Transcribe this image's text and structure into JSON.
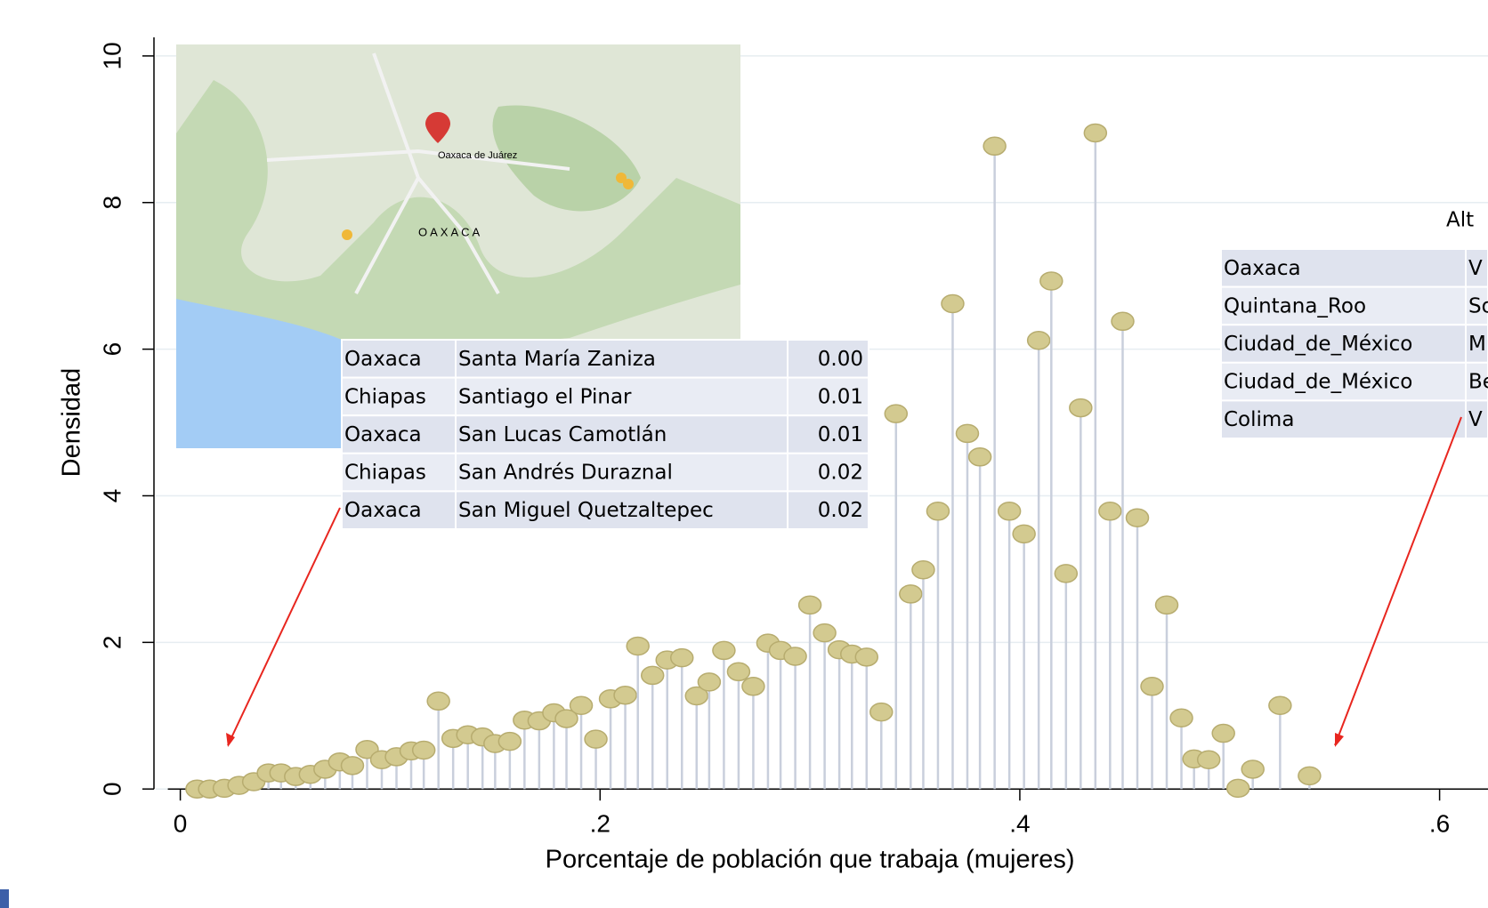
{
  "chart_data": {
    "type": "dropline",
    "xlabel": "Porcentaje de población que trabaja (mujeres)",
    "ylabel": "Densidad",
    "x": [
      0.008,
      0.014,
      0.021,
      0.028,
      0.035,
      0.042,
      0.048,
      0.055,
      0.062,
      0.069,
      0.076,
      0.082,
      0.089,
      0.096,
      0.103,
      0.11,
      0.116,
      0.123,
      0.13,
      0.137,
      0.144,
      0.15,
      0.157,
      0.164,
      0.171,
      0.178,
      0.184,
      0.191,
      0.198,
      0.205,
      0.212,
      0.218,
      0.225,
      0.232,
      0.239,
      0.246,
      0.252,
      0.259,
      0.266,
      0.273,
      0.28,
      0.286,
      0.293,
      0.3,
      0.307,
      0.314,
      0.32,
      0.327,
      0.334,
      0.341,
      0.348,
      0.354,
      0.361,
      0.368,
      0.375,
      0.381,
      0.388,
      0.395,
      0.402,
      0.409,
      0.415,
      0.422,
      0.429,
      0.436,
      0.443,
      0.449,
      0.456,
      0.463,
      0.47,
      0.477,
      0.483,
      0.49,
      0.497,
      0.504,
      0.511,
      0.524,
      0.538
    ],
    "values": [
      0,
      0,
      0.01,
      0.05,
      0.1,
      0.22,
      0.22,
      0.17,
      0.2,
      0.27,
      0.37,
      0.32,
      0.54,
      0.4,
      0.44,
      0.52,
      0.53,
      1.2,
      0.69,
      0.74,
      0.71,
      0.62,
      0.65,
      0.94,
      0.93,
      1.04,
      0.96,
      1.14,
      0.68,
      1.23,
      1.28,
      1.95,
      1.55,
      1.76,
      1.79,
      1.27,
      1.46,
      1.89,
      1.6,
      1.4,
      1.99,
      1.89,
      1.81,
      2.51,
      2.13,
      1.9,
      1.84,
      1.8,
      1.05,
      5.12,
      2.66,
      2.99,
      3.79,
      6.62,
      4.85,
      4.53,
      8.77,
      3.79,
      3.48,
      6.12,
      6.93,
      2.94,
      5.2,
      8.95,
      3.79,
      6.38,
      3.7,
      1.4,
      2.51,
      0.97,
      0.41,
      0.4,
      0.76,
      0.01,
      0.27,
      1.14,
      0.18
    ],
    "stem_color": "#c9cfdc",
    "marker_color": "#d3ca90",
    "xlim": [
      0,
      0.6
    ],
    "xticks": [
      0,
      {
        "value": 0.2,
        "label": ".2"
      },
      {
        "value": 0.4,
        "label": ".4"
      },
      {
        "value": 0.6,
        "label": ".6"
      }
    ],
    "ylim": [
      0,
      10
    ],
    "yticks": [
      0,
      2,
      4,
      6,
      8,
      10
    ],
    "grid": true
  },
  "map_labels": [
    "Oaxaca de Juárez",
    "OAXACA"
  ],
  "left_table": {
    "rows": [
      [
        "Oaxaca",
        "Santa María Zaniza",
        "0.00"
      ],
      [
        "Chiapas",
        "Santiago el Pinar",
        "0.01"
      ],
      [
        "Oaxaca",
        "San Lucas Camotlán",
        "0.01"
      ],
      [
        "Chiapas",
        "San Andrés Duraznal",
        "0.02"
      ],
      [
        "Oaxaca",
        "San Miguel Quetzaltepec",
        "0.02"
      ]
    ]
  },
  "right_table": {
    "title": "Alt",
    "rows": [
      [
        "Oaxaca",
        "V"
      ],
      [
        "Quintana_Roo",
        "So"
      ],
      [
        "Ciudad_de_México",
        "M"
      ],
      [
        "Ciudad_de_México",
        "Be"
      ],
      [
        "Colima",
        "V"
      ]
    ]
  }
}
